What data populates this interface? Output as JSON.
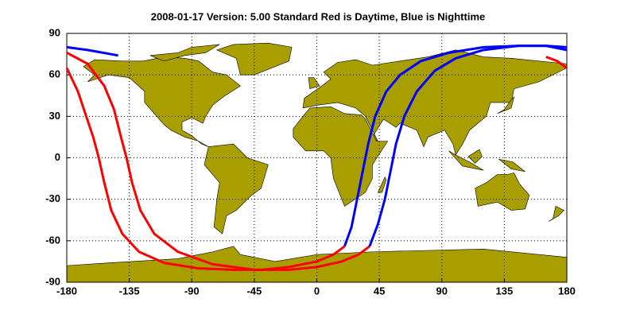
{
  "chart_data": {
    "type": "line",
    "title": "2008-01-17    Version: 5.00  Standard     Red is Daytime, Blue is Nighttime",
    "xlim": [
      -180,
      180
    ],
    "ylim": [
      -90,
      90
    ],
    "xticks": [
      -180,
      -135,
      -90,
      -45,
      0,
      45,
      90,
      135,
      180
    ],
    "yticks": [
      -90,
      -60,
      -30,
      0,
      30,
      60,
      90
    ],
    "grid": true,
    "series": [
      {
        "color": "#ff0000",
        "x": [
          -180,
          -172,
          -166,
          -161,
          -157,
          -153,
          -148,
          -140,
          -128,
          -110,
          -85,
          -60,
          -40,
          -20,
          0,
          12,
          20
        ],
        "values": [
          65,
          48,
          30,
          15,
          0,
          -18,
          -38,
          -55,
          -68,
          -76,
          -80,
          -81,
          -81,
          -79,
          -75,
          -70,
          -64
        ]
      },
      {
        "color": "#ff0000",
        "x": [
          -180,
          -165,
          -153,
          -146,
          -141,
          -137,
          -133,
          -127,
          -117,
          -100,
          -75,
          -45,
          -20,
          0,
          18,
          30,
          38
        ],
        "values": [
          76,
          68,
          52,
          35,
          15,
          0,
          -18,
          -38,
          -55,
          -68,
          -77,
          -81,
          -81,
          -79,
          -75,
          -70,
          -64
        ]
      },
      {
        "color": "#ff0000",
        "x": [
          165,
          173,
          180
        ],
        "values": [
          73,
          70,
          65
        ]
      },
      {
        "color": "#0000ff",
        "x": [
          -180,
          -165,
          -143
        ],
        "values": [
          80,
          78,
          74
        ]
      },
      {
        "color": "#0000ff",
        "x": [
          20,
          25,
          29,
          33,
          37,
          42,
          50,
          60,
          75,
          95,
          120,
          145,
          165,
          180
        ],
        "values": [
          -64,
          -50,
          -30,
          -10,
          10,
          30,
          48,
          60,
          70,
          76,
          80,
          81,
          81,
          80
        ]
      },
      {
        "color": "#0000ff",
        "x": [
          38,
          44,
          49,
          53,
          57,
          63,
          72,
          85,
          100,
          120,
          145,
          165,
          180
        ],
        "values": [
          -64,
          -48,
          -30,
          -10,
          10,
          30,
          48,
          63,
          72,
          78,
          81,
          81,
          78
        ]
      }
    ]
  }
}
